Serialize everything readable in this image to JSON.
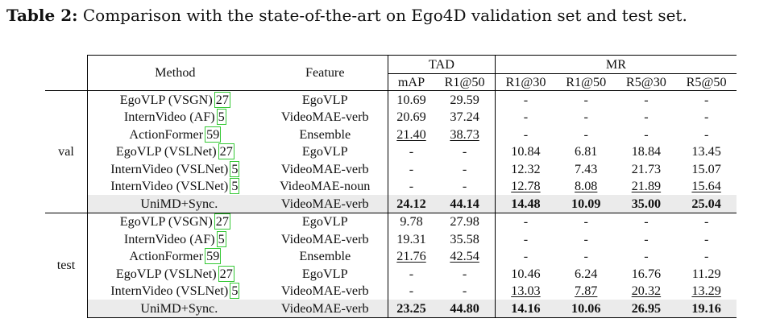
{
  "caption": {
    "label": "Table 2:",
    "text": " Comparison with the state-of-the-art on Ego4D validation set and test set."
  },
  "header": {
    "method": "Method",
    "feature": "Feature",
    "tad": "TAD",
    "mr": "MR",
    "cols": [
      "mAP",
      "R1@50",
      "R1@30",
      "R1@50",
      "R5@30",
      "R5@50"
    ]
  },
  "groups": [
    {
      "name": "val",
      "rows": [
        {
          "method": "EgoVLP (VSGN)",
          "cite": "27",
          "feature": "EgoVLP",
          "vals": [
            "10.69",
            "29.59",
            "-",
            "-",
            "-",
            "-"
          ]
        },
        {
          "method": "InternVideo (AF)",
          "cite": "5",
          "feature": "VideoMAE-verb",
          "vals": [
            "20.69",
            "37.24",
            "-",
            "-",
            "-",
            "-"
          ]
        },
        {
          "method": "ActionFormer",
          "cite": "59",
          "feature": "Ensemble",
          "vals": [
            "21.40",
            "38.73",
            "-",
            "-",
            "-",
            "-"
          ]
        },
        {
          "method": "EgoVLP (VSLNet)",
          "cite": "27",
          "feature": "EgoVLP",
          "vals": [
            "-",
            "-",
            "10.84",
            "6.81",
            "18.84",
            "13.45"
          ]
        },
        {
          "method": "InternVideo (VSLNet)",
          "cite": "5",
          "feature": "VideoMAE-verb",
          "vals": [
            "-",
            "-",
            "12.32",
            "7.43",
            "21.73",
            "15.07"
          ]
        },
        {
          "method": "InternVideo (VSLNet)",
          "cite": "5",
          "feature": "VideoMAE-noun",
          "vals": [
            "-",
            "-",
            "12.78",
            "8.08",
            "21.89",
            "15.64"
          ]
        }
      ],
      "ours": {
        "method": "UniMD+Sync.",
        "feature": "VideoMAE-verb",
        "vals": [
          "24.12",
          "44.14",
          "14.48",
          "10.09",
          "35.00",
          "25.04"
        ]
      }
    },
    {
      "name": "test",
      "rows": [
        {
          "method": "EgoVLP (VSGN)",
          "cite": "27",
          "feature": "EgoVLP",
          "vals": [
            "9.78",
            "27.98",
            "-",
            "-",
            "-",
            "-"
          ]
        },
        {
          "method": "InternVideo (AF)",
          "cite": "5",
          "feature": "VideoMAE-verb",
          "vals": [
            "19.31",
            "35.58",
            "-",
            "-",
            "-",
            "-"
          ]
        },
        {
          "method": "ActionFormer",
          "cite": "59",
          "feature": "Ensemble",
          "vals": [
            "21.76",
            "42.54",
            "-",
            "-",
            "-",
            "-"
          ]
        },
        {
          "method": "EgoVLP (VSLNet)",
          "cite": "27",
          "feature": "EgoVLP",
          "vals": [
            "-",
            "-",
            "10.46",
            "6.24",
            "16.76",
            "11.29"
          ]
        },
        {
          "method": "InternVideo (VSLNet)",
          "cite": "5",
          "feature": "VideoMAE-verb",
          "vals": [
            "-",
            "-",
            "13.03",
            "7.87",
            "20.32",
            "13.29"
          ]
        }
      ],
      "ours": {
        "method": "UniMD+Sync.",
        "feature": "VideoMAE-verb",
        "vals": [
          "23.25",
          "44.80",
          "14.16",
          "10.06",
          "26.95",
          "19.16"
        ]
      }
    }
  ]
}
